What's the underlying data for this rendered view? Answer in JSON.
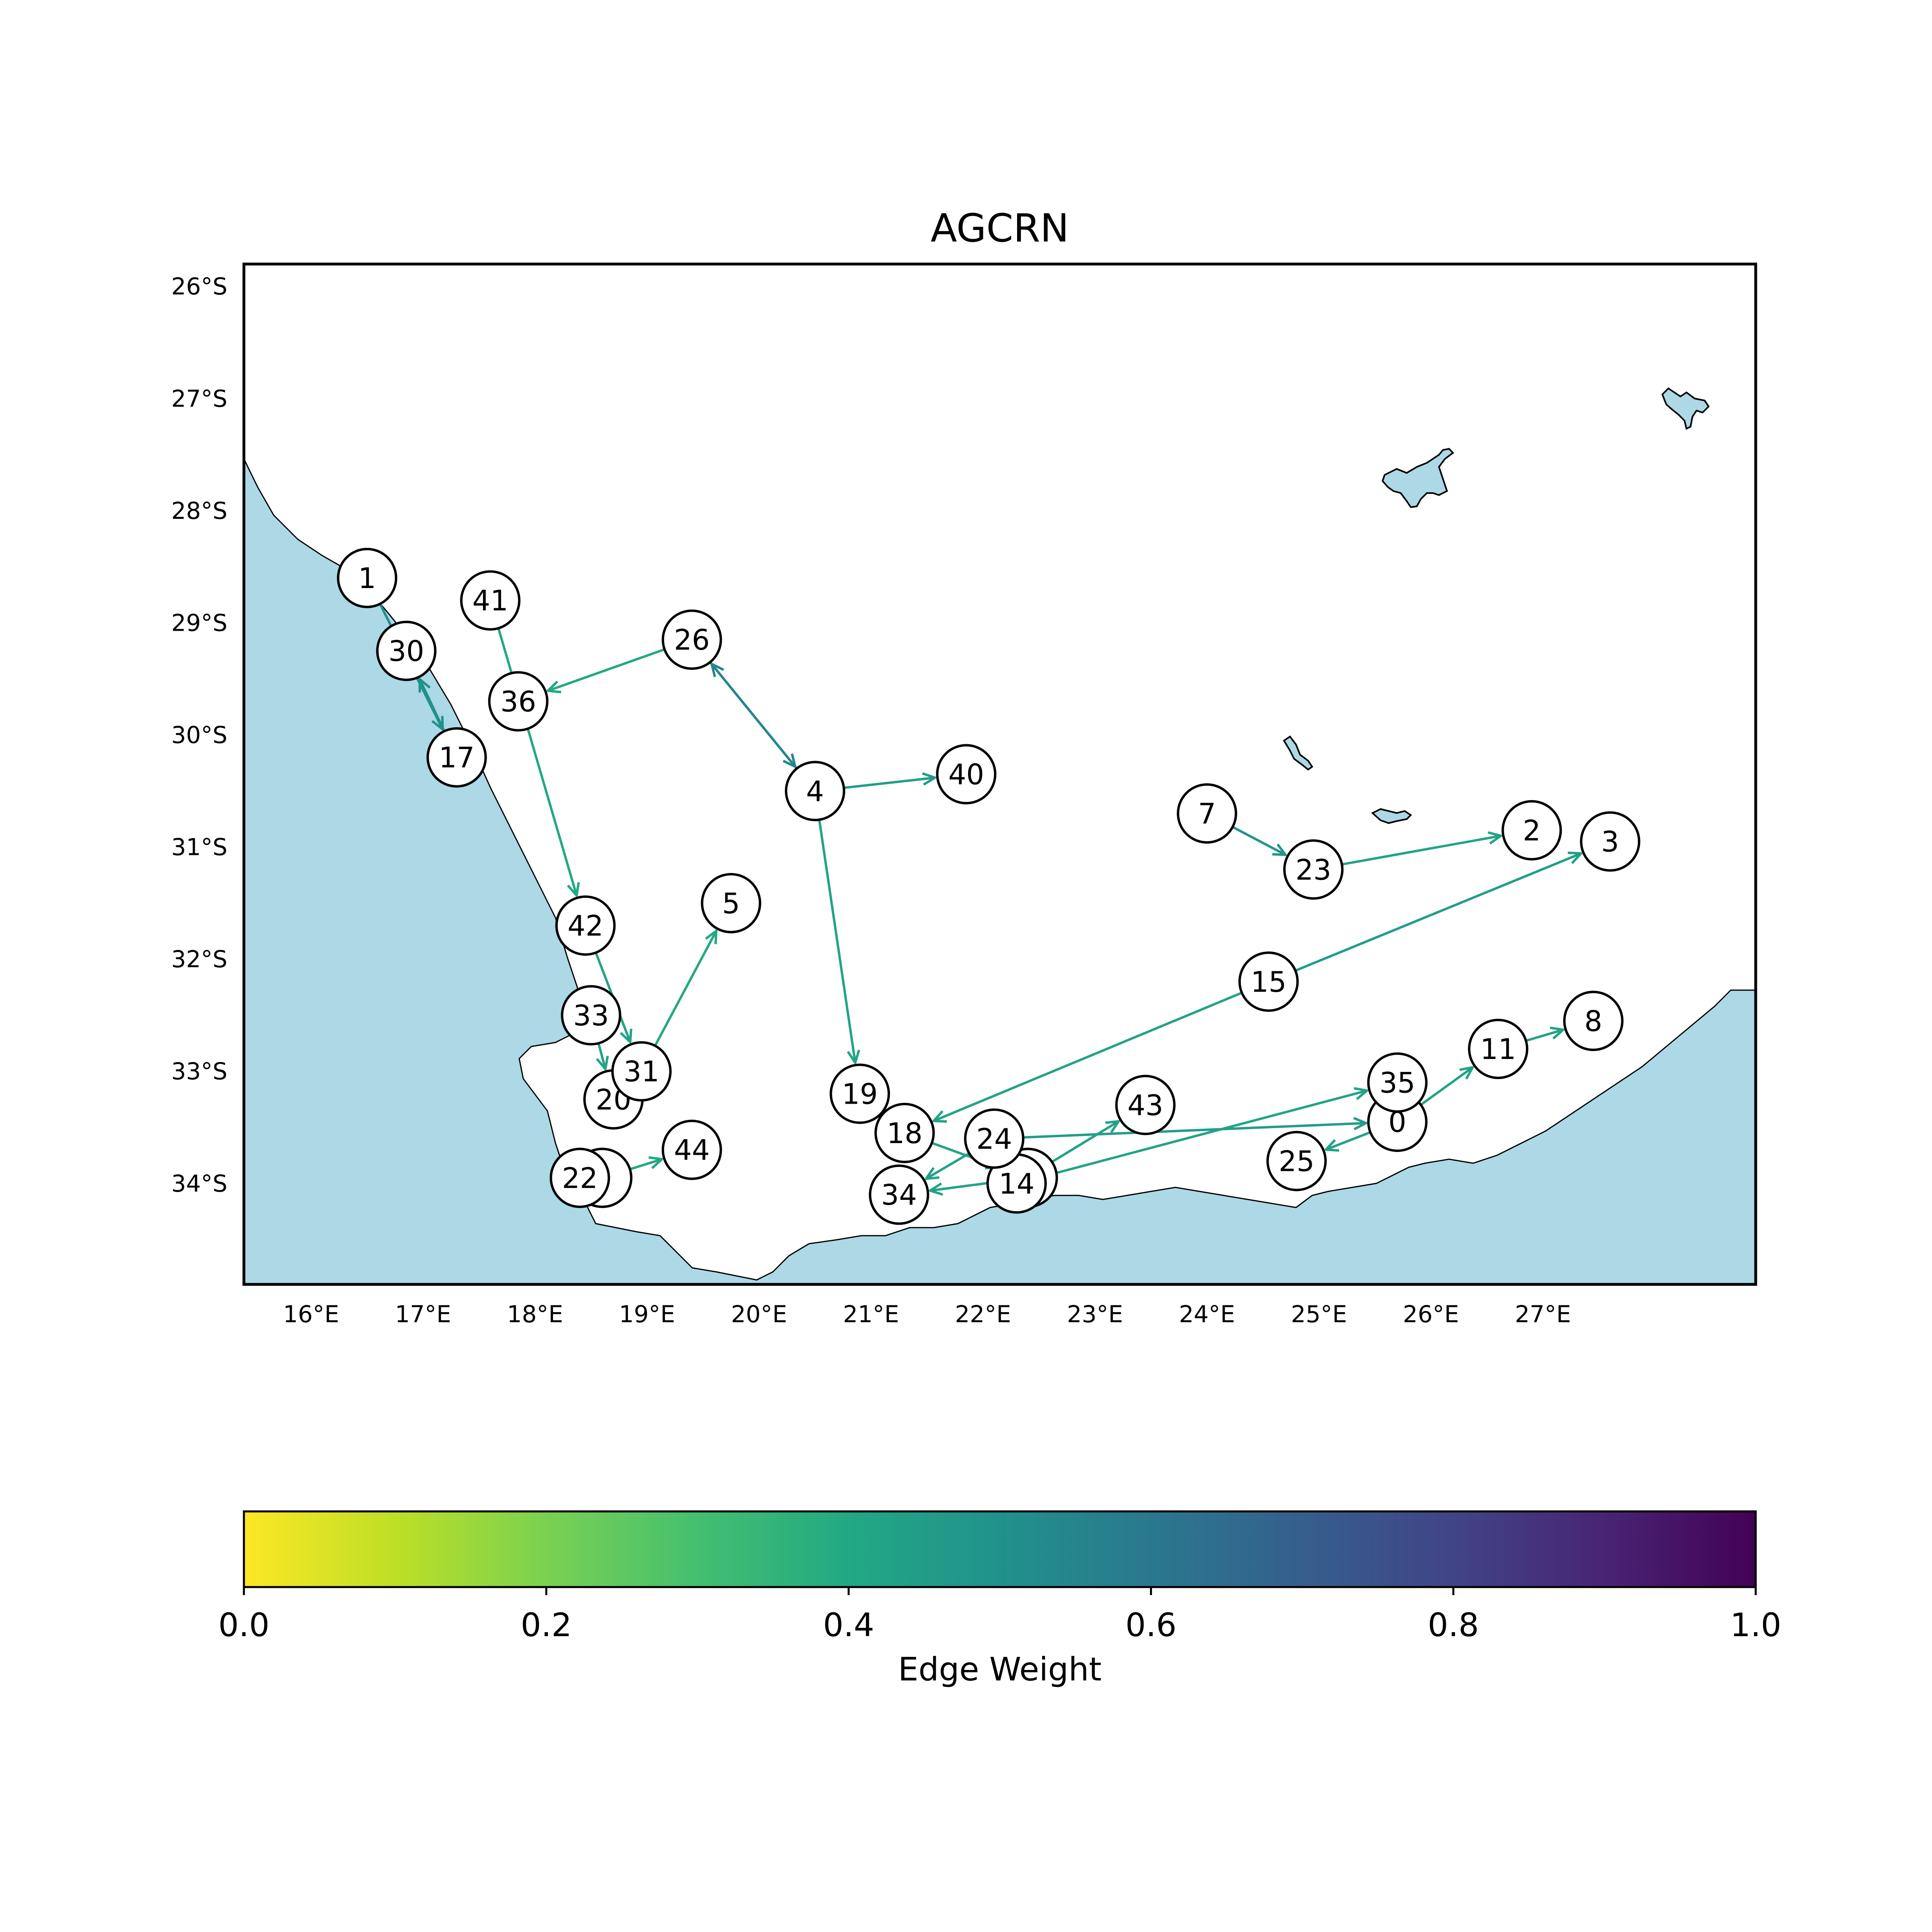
{
  "title": "AGCRN",
  "colors": {
    "ocean": "#add8e6",
    "land": "#ffffff",
    "coastline": "#000000",
    "edge_mid": "#21918c",
    "edge_dark": "#2c728e"
  },
  "axes": {
    "lon_ticks": [
      "16°E",
      "17°E",
      "18°E",
      "19°E",
      "20°E",
      "21°E",
      "22°E",
      "23°E",
      "24°E",
      "25°E",
      "26°E",
      "27°E"
    ],
    "lat_ticks": [
      "26°S",
      "27°S",
      "28°S",
      "29°S",
      "30°S",
      "31°S",
      "32°S",
      "33°S",
      "34°S"
    ]
  },
  "nodes": [
    {
      "id": "0",
      "lon": 25.7,
      "lat": -33.45
    },
    {
      "id": "1",
      "lon": 16.5,
      "lat": -28.6
    },
    {
      "id": "2",
      "lon": 26.9,
      "lat": -30.85
    },
    {
      "id": "3",
      "lon": 27.6,
      "lat": -30.95
    },
    {
      "id": "4",
      "lon": 20.5,
      "lat": -30.5
    },
    {
      "id": "5",
      "lon": 19.75,
      "lat": -31.5
    },
    {
      "id": "6",
      "lon": 18.6,
      "lat": -33.95
    },
    {
      "id": "7",
      "lon": 24.0,
      "lat": -30.7
    },
    {
      "id": "8",
      "lon": 27.45,
      "lat": -32.55
    },
    {
      "id": "11",
      "lon": 26.6,
      "lat": -32.8
    },
    {
      "id": "12",
      "lon": 22.4,
      "lat": -33.95
    },
    {
      "id": "14",
      "lon": 22.3,
      "lat": -34.0
    },
    {
      "id": "15",
      "lon": 24.55,
      "lat": -32.2
    },
    {
      "id": "17",
      "lon": 17.3,
      "lat": -30.2
    },
    {
      "id": "18",
      "lon": 21.3,
      "lat": -33.55
    },
    {
      "id": "19",
      "lon": 20.9,
      "lat": -33.2
    },
    {
      "id": "20",
      "lon": 18.7,
      "lat": -33.25
    },
    {
      "id": "22",
      "lon": 18.4,
      "lat": -33.95
    },
    {
      "id": "23",
      "lon": 24.95,
      "lat": -31.2
    },
    {
      "id": "24",
      "lon": 22.1,
      "lat": -33.6
    },
    {
      "id": "25",
      "lon": 24.8,
      "lat": -33.8
    },
    {
      "id": "26",
      "lon": 19.4,
      "lat": -29.15
    },
    {
      "id": "30",
      "lon": 16.85,
      "lat": -29.25
    },
    {
      "id": "31",
      "lon": 18.95,
      "lat": -33.0
    },
    {
      "id": "33",
      "lon": 18.5,
      "lat": -32.5
    },
    {
      "id": "34",
      "lon": 21.25,
      "lat": -34.1
    },
    {
      "id": "35",
      "lon": 25.7,
      "lat": -33.1
    },
    {
      "id": "36",
      "lon": 17.85,
      "lat": -29.7
    },
    {
      "id": "40",
      "lon": 21.85,
      "lat": -30.35
    },
    {
      "id": "41",
      "lon": 17.6,
      "lat": -28.8
    },
    {
      "id": "42",
      "lon": 18.45,
      "lat": -31.7
    },
    {
      "id": "43",
      "lon": 23.45,
      "lat": -33.3
    },
    {
      "id": "44",
      "lon": 19.4,
      "lat": -33.7
    }
  ],
  "edges": [
    {
      "from": "1",
      "to": "17",
      "weight": 0.5
    },
    {
      "from": "17",
      "to": "30",
      "weight": 0.5
    },
    {
      "from": "26",
      "to": "36",
      "weight": 0.4
    },
    {
      "from": "41",
      "to": "42",
      "weight": 0.4
    },
    {
      "from": "26",
      "to": "4",
      "weight": 0.55
    },
    {
      "from": "4",
      "to": "26",
      "weight": 0.55
    },
    {
      "from": "4",
      "to": "40",
      "weight": 0.45
    },
    {
      "from": "4",
      "to": "19",
      "weight": 0.42
    },
    {
      "from": "42",
      "to": "31",
      "weight": 0.42
    },
    {
      "from": "33",
      "to": "20",
      "weight": 0.42
    },
    {
      "from": "31",
      "to": "5",
      "weight": 0.4
    },
    {
      "from": "6",
      "to": "44",
      "weight": 0.4
    },
    {
      "from": "7",
      "to": "23",
      "weight": 0.48
    },
    {
      "from": "23",
      "to": "2",
      "weight": 0.42
    },
    {
      "from": "15",
      "to": "3",
      "weight": 0.45
    },
    {
      "from": "15",
      "to": "18",
      "weight": 0.42
    },
    {
      "from": "18",
      "to": "12",
      "weight": 0.42
    },
    {
      "from": "11",
      "to": "8",
      "weight": 0.42
    },
    {
      "from": "0",
      "to": "11",
      "weight": 0.42
    },
    {
      "from": "0",
      "to": "25",
      "weight": 0.42
    },
    {
      "from": "24",
      "to": "0",
      "weight": 0.45
    },
    {
      "from": "14",
      "to": "35",
      "weight": 0.42
    },
    {
      "from": "14",
      "to": "43",
      "weight": 0.42
    },
    {
      "from": "12",
      "to": "34",
      "weight": 0.42
    },
    {
      "from": "24",
      "to": "34",
      "weight": 0.42
    }
  ],
  "colorbar": {
    "label": "Edge Weight",
    "min": 0.0,
    "max": 1.0,
    "tick_values": [
      0.0,
      0.2,
      0.4,
      0.6,
      0.8,
      1.0
    ],
    "tick_labels": [
      "0.0",
      "0.2",
      "0.4",
      "0.6",
      "0.8",
      "1.0"
    ],
    "colormap": "viridis_r"
  }
}
